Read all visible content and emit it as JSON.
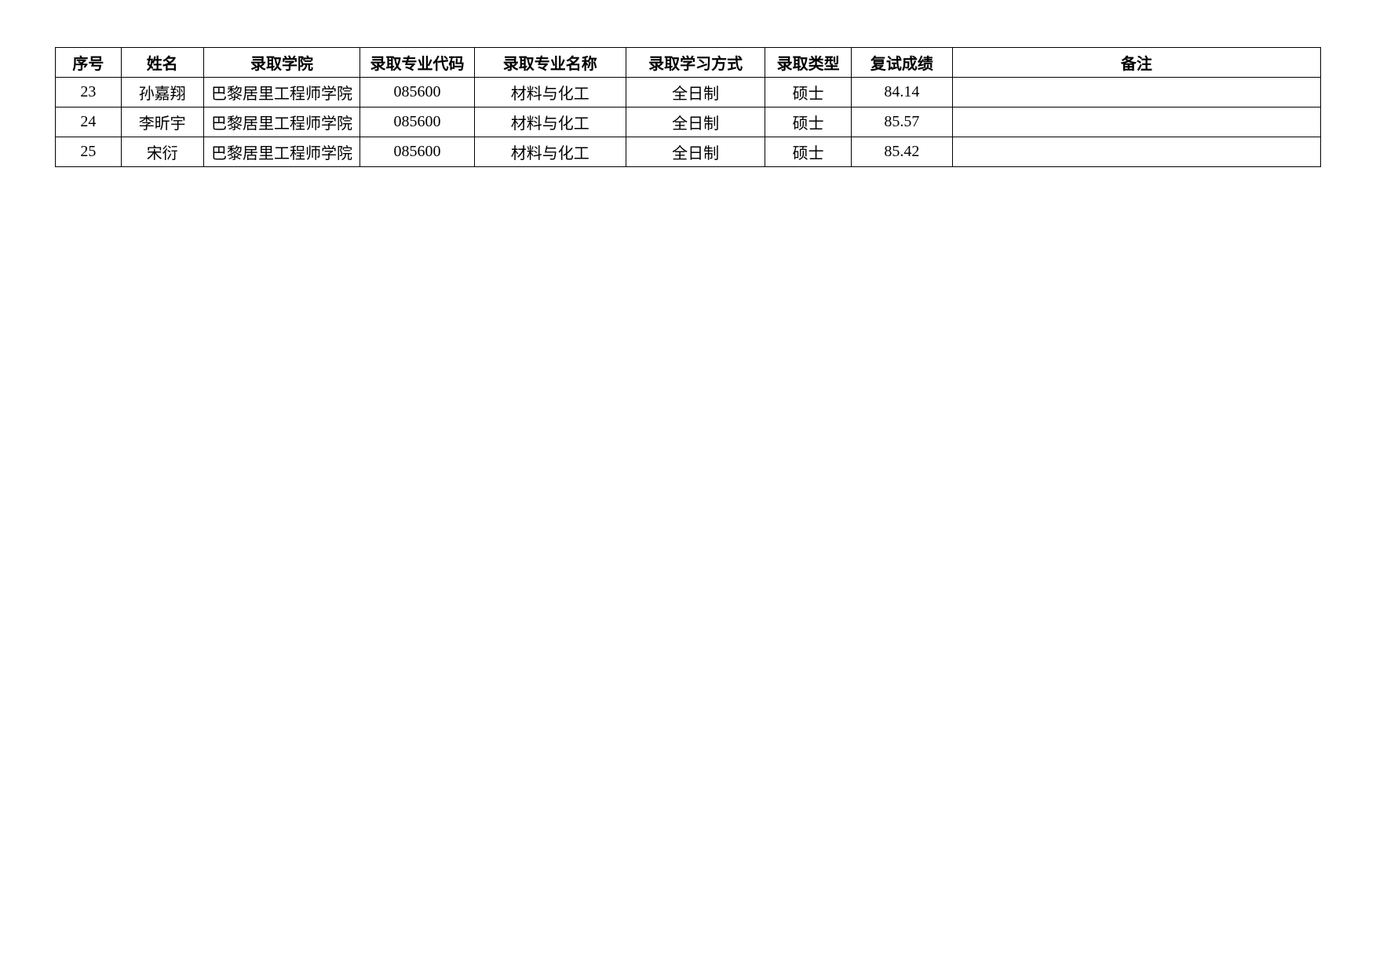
{
  "table": {
    "columns": [
      {
        "key": "seq",
        "label": "序号",
        "class": "col-seq"
      },
      {
        "key": "name",
        "label": "姓名",
        "class": "col-name"
      },
      {
        "key": "college",
        "label": "录取学院",
        "class": "col-college"
      },
      {
        "key": "majorcode",
        "label": "录取专业代码",
        "class": "col-majorcode"
      },
      {
        "key": "majorname",
        "label": "录取专业名称",
        "class": "col-majorname"
      },
      {
        "key": "studymode",
        "label": "录取学习方式",
        "class": "col-studymode"
      },
      {
        "key": "type",
        "label": "录取类型",
        "class": "col-type"
      },
      {
        "key": "score",
        "label": "复试成绩",
        "class": "col-score"
      },
      {
        "key": "remark",
        "label": "备注",
        "class": "col-remark"
      }
    ],
    "rows": [
      {
        "seq": "23",
        "name": "孙嘉翔",
        "college": "巴黎居里工程师学院",
        "majorcode": "085600",
        "majorname": "材料与化工",
        "studymode": "全日制",
        "type": "硕士",
        "score": "84.14",
        "remark": ""
      },
      {
        "seq": "24",
        "name": "李昕宇",
        "college": "巴黎居里工程师学院",
        "majorcode": "085600",
        "majorname": "材料与化工",
        "studymode": "全日制",
        "type": "硕士",
        "score": "85.57",
        "remark": ""
      },
      {
        "seq": "25",
        "name": "宋衍",
        "college": "巴黎居里工程师学院",
        "majorcode": "085600",
        "majorname": "材料与化工",
        "studymode": "全日制",
        "type": "硕士",
        "score": "85.42",
        "remark": ""
      }
    ],
    "border_color": "#000000",
    "background_color": "#ffffff",
    "text_color": "#000000",
    "header_fontsize": 20,
    "cell_fontsize": 20,
    "header_fontweight": "bold"
  }
}
